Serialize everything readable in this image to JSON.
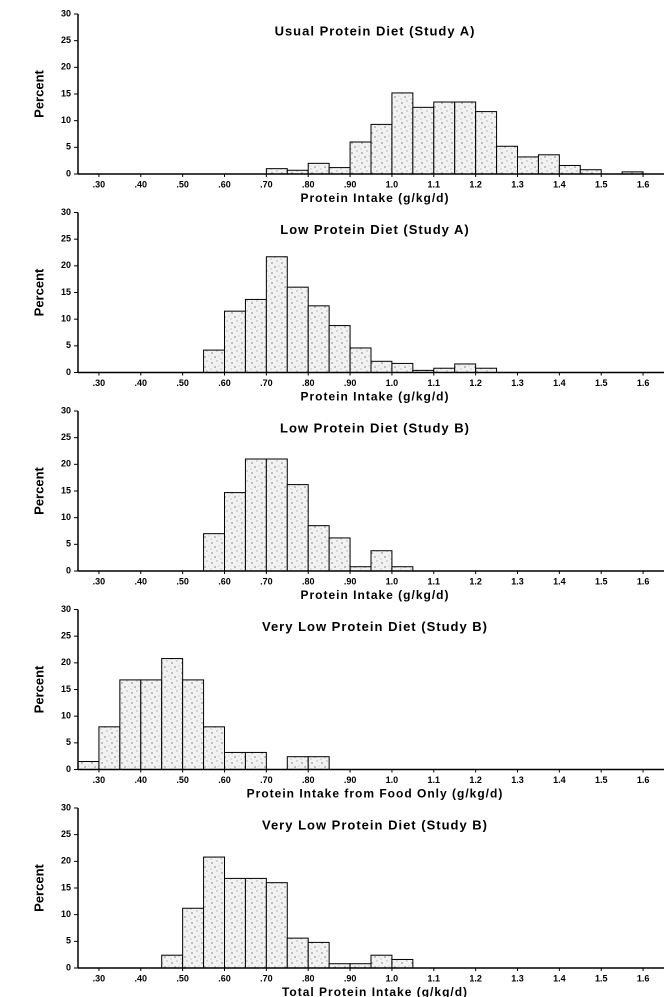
{
  "chart_data": [
    {
      "type": "histogram",
      "title": "Usual Protein Diet (Study A)",
      "xlabel": "Protein Intake (g/kg/d)",
      "ylabel": "Percent",
      "bins": [
        0.7,
        0.75,
        0.8,
        0.85,
        0.9,
        0.95,
        1.0,
        1.05,
        1.1,
        1.15,
        1.2,
        1.25,
        1.3,
        1.35,
        1.4,
        1.45,
        1.5,
        1.55,
        1.6
      ],
      "values": [
        1,
        0.7,
        2,
        1.2,
        6,
        9.3,
        15.2,
        12.5,
        13.5,
        13.5,
        11.7,
        5.2,
        3.2,
        3.6,
        1.6,
        0.8,
        0,
        0.4
      ],
      "xlim": [
        0.25,
        1.65
      ],
      "ylim": [
        0,
        30
      ],
      "xticks": [
        {
          "value": 0.3,
          "label": ".30"
        },
        {
          "value": 0.4,
          "label": ".40"
        },
        {
          "value": 0.5,
          "label": ".50"
        },
        {
          "value": 0.6,
          "label": ".60"
        },
        {
          "value": 0.7,
          "label": ".70"
        },
        {
          "value": 0.8,
          "label": ".80"
        },
        {
          "value": 0.9,
          "label": ".90"
        },
        {
          "value": 1.0,
          "label": "1.0"
        },
        1.1,
        1.2,
        1.3,
        1.4,
        1.5,
        1.6
      ],
      "yticks": [
        0,
        5,
        10,
        15,
        20,
        25,
        30
      ]
    },
    {
      "type": "histogram",
      "title": "Low Protein Diet (Study A)",
      "xlabel": "Protein Intake (g/kg/d)",
      "ylabel": "Percent",
      "bins": [
        0.55,
        0.6,
        0.65,
        0.7,
        0.75,
        0.8,
        0.85,
        0.9,
        0.95,
        1.0,
        1.05,
        1.1,
        1.15,
        1.2,
        1.25
      ],
      "values": [
        4.2,
        11.5,
        13.7,
        21.7,
        16,
        12.5,
        8.8,
        4.6,
        2.1,
        1.7,
        0.4,
        0.8,
        1.6,
        0.8
      ],
      "xlim": [
        0.25,
        1.65
      ],
      "ylim": [
        0,
        30
      ],
      "xticks": [
        {
          "value": 0.3,
          "label": ".30"
        },
        {
          "value": 0.4,
          "label": ".40"
        },
        {
          "value": 0.5,
          "label": ".50"
        },
        {
          "value": 0.6,
          "label": ".60"
        },
        {
          "value": 0.7,
          "label": ".70"
        },
        {
          "value": 0.8,
          "label": ".80"
        },
        {
          "value": 0.9,
          "label": ".90"
        },
        {
          "value": 1.0,
          "label": "1.0"
        },
        1.1,
        1.2,
        1.3,
        1.4,
        1.5,
        1.6
      ],
      "yticks": [
        0,
        5,
        10,
        15,
        20,
        25,
        30
      ]
    },
    {
      "type": "histogram",
      "title": "Low Protein Diet (Study B)",
      "xlabel": "Protein Intake (g/kg/d)",
      "ylabel": "Percent",
      "bins": [
        0.55,
        0.6,
        0.65,
        0.7,
        0.75,
        0.8,
        0.85,
        0.9,
        0.95,
        1.0,
        1.05
      ],
      "values": [
        7,
        14.7,
        21,
        21,
        16.2,
        8.5,
        6.2,
        0.8,
        3.8,
        0.8
      ],
      "xlim": [
        0.25,
        1.65
      ],
      "ylim": [
        0,
        30
      ],
      "xticks": [
        {
          "value": 0.3,
          "label": ".30"
        },
        {
          "value": 0.4,
          "label": ".40"
        },
        {
          "value": 0.5,
          "label": ".50"
        },
        {
          "value": 0.6,
          "label": ".60"
        },
        {
          "value": 0.7,
          "label": ".70"
        },
        {
          "value": 0.8,
          "label": ".80"
        },
        {
          "value": 0.9,
          "label": ".90"
        },
        {
          "value": 1.0,
          "label": "1.0"
        },
        1.1,
        1.2,
        1.3,
        1.4,
        1.5,
        1.6
      ],
      "yticks": [
        0,
        5,
        10,
        15,
        20,
        25,
        30
      ]
    },
    {
      "type": "histogram",
      "title": "Very Low Protein Diet (Study B)",
      "xlabel": "Protein Intake from Food Only (g/kg/d)",
      "ylabel": "Percent",
      "bins": [
        0.25,
        0.3,
        0.35,
        0.4,
        0.45,
        0.5,
        0.55,
        0.6,
        0.65,
        0.7,
        0.75,
        0.8,
        0.85
      ],
      "values": [
        1.5,
        8,
        16.8,
        16.8,
        20.8,
        16.8,
        8,
        3.2,
        3.2,
        0,
        2.4,
        2.4
      ],
      "xlim": [
        0.25,
        1.65
      ],
      "ylim": [
        0,
        30
      ],
      "xticks": [
        {
          "value": 0.3,
          "label": ".30"
        },
        {
          "value": 0.4,
          "label": ".40"
        },
        {
          "value": 0.5,
          "label": ".50"
        },
        {
          "value": 0.6,
          "label": ".60"
        },
        {
          "value": 0.7,
          "label": ".70"
        },
        {
          "value": 0.8,
          "label": ".80"
        },
        {
          "value": 0.9,
          "label": ".90"
        },
        {
          "value": 1.0,
          "label": "1.0"
        },
        1.1,
        1.2,
        1.3,
        1.4,
        1.5,
        1.6
      ],
      "yticks": [
        0,
        5,
        10,
        15,
        20,
        25,
        30
      ]
    },
    {
      "type": "histogram",
      "title": "Very Low Protein Diet (Study B)",
      "xlabel": "Total Protein Intake (g/kg/d)",
      "ylabel": "Percent",
      "bins": [
        0.45,
        0.5,
        0.55,
        0.6,
        0.65,
        0.7,
        0.75,
        0.8,
        0.85,
        0.9,
        0.95,
        1.0,
        1.05
      ],
      "values": [
        2.4,
        11.2,
        20.8,
        16.8,
        16.8,
        16,
        5.6,
        4.8,
        0.8,
        0.8,
        2.4,
        1.6
      ],
      "xlim": [
        0.25,
        1.65
      ],
      "ylim": [
        0,
        30
      ],
      "xticks": [
        {
          "value": 0.3,
          "label": ".30"
        },
        {
          "value": 0.4,
          "label": ".40"
        },
        {
          "value": 0.5,
          "label": ".50"
        },
        {
          "value": 0.6,
          "label": ".60"
        },
        {
          "value": 0.7,
          "label": ".70"
        },
        {
          "value": 0.8,
          "label": ".80"
        },
        {
          "value": 0.9,
          "label": ".90"
        },
        {
          "value": 1.0,
          "label": "1.0"
        },
        1.1,
        1.2,
        1.3,
        1.4,
        1.5,
        1.6
      ],
      "yticks": [
        0,
        5,
        10,
        15,
        20,
        25,
        30
      ]
    }
  ]
}
